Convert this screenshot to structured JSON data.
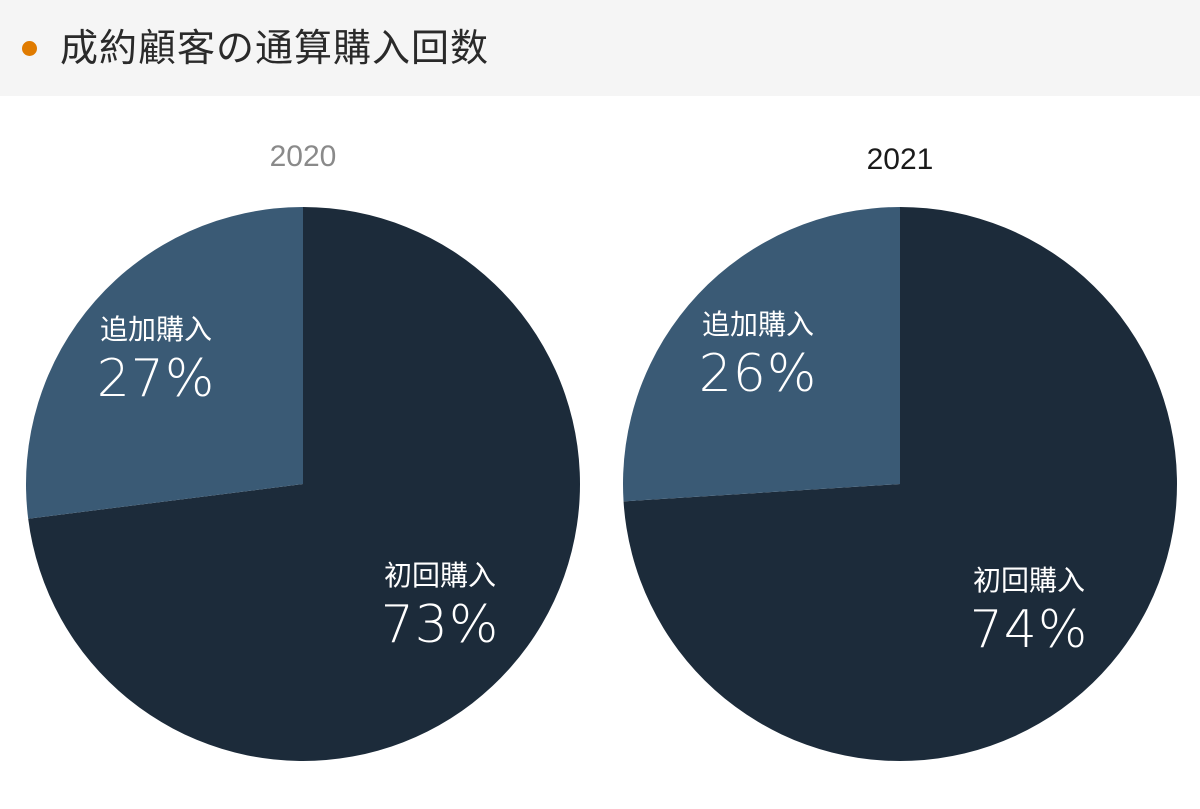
{
  "header": {
    "title": "成約顧客の通算購入回数",
    "bullet_color": "#e07b00"
  },
  "charts": [
    {
      "year": "2020",
      "slices": [
        {
          "label": "初回購入",
          "value": 73,
          "pct_text": "73%",
          "color": "#1c2b3a"
        },
        {
          "label": "追加購入",
          "value": 27,
          "pct_text": "27%",
          "color": "#3a5a75"
        }
      ]
    },
    {
      "year": "2021",
      "slices": [
        {
          "label": "初回購入",
          "value": 74,
          "pct_text": "74%",
          "color": "#1c2b3a"
        },
        {
          "label": "追加購入",
          "value": 26,
          "pct_text": "26%",
          "color": "#3a5a75"
        }
      ]
    }
  ],
  "chart_data": [
    {
      "type": "pie",
      "title": "2020",
      "categories": [
        "初回購入",
        "追加購入"
      ],
      "values": [
        73,
        27
      ],
      "colors": [
        "#1c2b3a",
        "#3a5a75"
      ],
      "legend": "none (labels inside slices)"
    },
    {
      "type": "pie",
      "title": "2021",
      "categories": [
        "初回購入",
        "追加購入"
      ],
      "values": [
        74,
        26
      ],
      "colors": [
        "#1c2b3a",
        "#3a5a75"
      ],
      "legend": "none (labels inside slices)"
    }
  ]
}
